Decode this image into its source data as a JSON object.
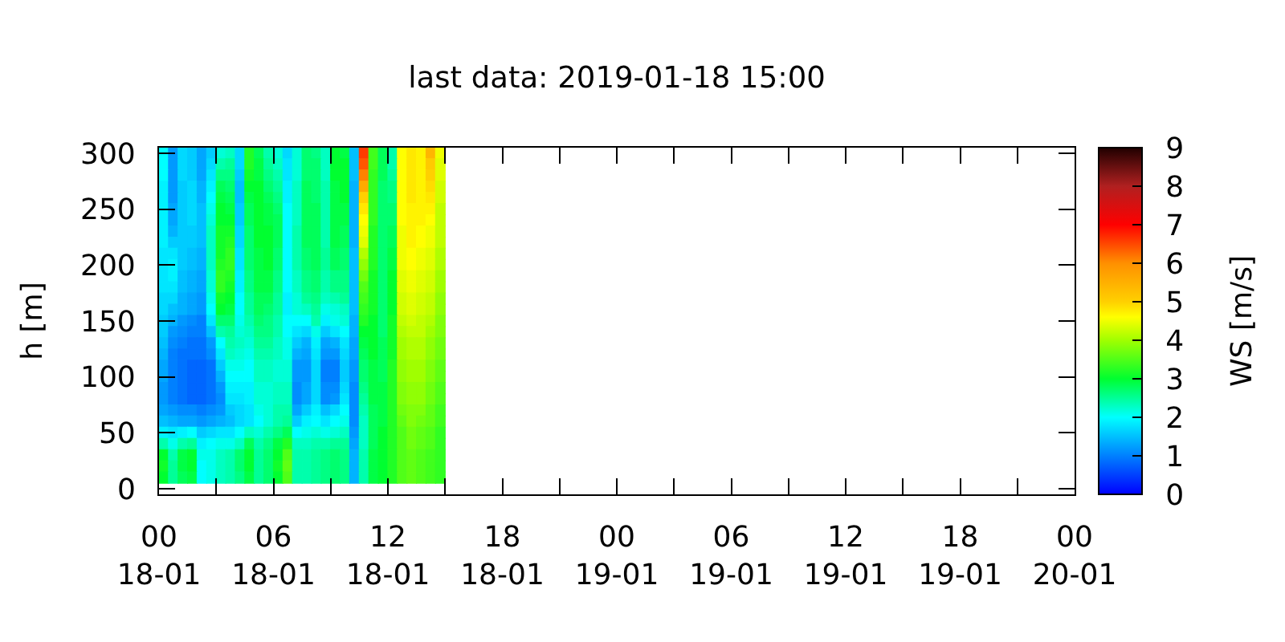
{
  "chart_data": {
    "type": "heatmap",
    "title": "last data: 2019-01-18 15:00",
    "ylabel": "h [m]",
    "clabel": "WS [m/s]",
    "x": [
      "2019-01-18T00:15",
      "2019-01-18T00:45",
      "2019-01-18T01:15",
      "2019-01-18T01:45",
      "2019-01-18T02:15",
      "2019-01-18T02:45",
      "2019-01-18T03:15",
      "2019-01-18T03:45",
      "2019-01-18T04:15",
      "2019-01-18T04:45",
      "2019-01-18T05:15",
      "2019-01-18T05:45",
      "2019-01-18T06:15",
      "2019-01-18T06:45",
      "2019-01-18T07:15",
      "2019-01-18T07:45",
      "2019-01-18T08:15",
      "2019-01-18T08:45",
      "2019-01-18T09:15",
      "2019-01-18T09:45",
      "2019-01-18T10:15",
      "2019-01-18T10:45",
      "2019-01-18T11:15",
      "2019-01-18T11:45",
      "2019-01-18T12:15",
      "2019-01-18T12:45",
      "2019-01-18T13:15",
      "2019-01-18T13:45",
      "2019-01-18T14:15",
      "2019-01-18T14:45"
    ],
    "y_categories": [
      "300",
      null,
      null,
      null,
      null,
      "250",
      null,
      null,
      null,
      null,
      "200",
      null,
      null,
      null,
      null,
      "150",
      null,
      null,
      null,
      null,
      "100",
      null,
      null,
      null,
      null,
      "50",
      null,
      null,
      null,
      null,
      "0"
    ],
    "cells": [
      [
        2.0,
        1.2,
        1.7,
        1.6,
        1.3,
        1.6,
        2.2,
        2.3,
        1.7,
        3.2,
        2.8,
        2.4,
        2.2,
        1.7,
        2.2,
        2.7,
        2.6,
        2.3,
        3.0,
        2.9,
        1.5,
        6.6,
        3.4,
        2.8,
        2.4,
        4.6,
        4.8,
        4.7,
        5.4,
        4.5
      ],
      [
        2.0,
        1.2,
        1.7,
        1.6,
        1.3,
        1.7,
        2.4,
        2.5,
        1.7,
        3.2,
        2.9,
        2.5,
        2.3,
        1.8,
        2.2,
        2.7,
        2.7,
        2.3,
        3.0,
        3.0,
        1.5,
        6.4,
        3.4,
        2.8,
        2.4,
        4.6,
        4.8,
        4.7,
        5.1,
        4.4
      ],
      [
        2.0,
        1.2,
        1.7,
        1.6,
        1.3,
        1.8,
        2.6,
        2.6,
        1.6,
        3.1,
        2.9,
        2.6,
        2.4,
        1.8,
        2.2,
        2.7,
        2.7,
        2.3,
        3.0,
        3.0,
        1.5,
        6.1,
        3.3,
        2.8,
        2.5,
        4.6,
        4.8,
        4.7,
        5.0,
        4.4
      ],
      [
        1.9,
        1.2,
        1.6,
        1.7,
        1.4,
        1.9,
        2.8,
        2.7,
        1.5,
        3.0,
        3.0,
        2.7,
        2.5,
        1.9,
        2.3,
        2.8,
        2.7,
        2.4,
        2.9,
        3.0,
        1.4,
        5.6,
        3.3,
        2.7,
        2.6,
        4.6,
        4.8,
        4.7,
        4.9,
        4.3
      ],
      [
        1.9,
        1.2,
        1.6,
        1.7,
        1.4,
        2.0,
        2.9,
        2.8,
        1.5,
        2.9,
        3.0,
        2.8,
        2.6,
        1.9,
        2.3,
        2.8,
        2.7,
        2.4,
        2.9,
        3.0,
        1.4,
        5.0,
        3.3,
        2.7,
        2.6,
        4.6,
        4.8,
        4.7,
        4.8,
        4.3
      ],
      [
        1.9,
        1.3,
        1.6,
        1.7,
        1.5,
        2.1,
        3.0,
        2.9,
        1.6,
        2.8,
        3.0,
        2.9,
        2.7,
        2.0,
        2.3,
        2.8,
        2.8,
        2.4,
        2.9,
        2.9,
        1.4,
        4.8,
        3.3,
        2.7,
        2.7,
        4.6,
        4.7,
        4.7,
        4.7,
        4.2
      ],
      [
        1.9,
        1.3,
        1.6,
        1.7,
        1.5,
        2.2,
        3.0,
        3.0,
        1.6,
        2.8,
        3.0,
        2.9,
        2.8,
        2.0,
        2.3,
        2.8,
        2.8,
        2.4,
        2.9,
        2.9,
        1.4,
        4.6,
        3.3,
        2.7,
        2.7,
        4.6,
        4.7,
        4.7,
        4.6,
        4.2
      ],
      [
        1.9,
        1.4,
        1.6,
        1.6,
        1.5,
        2.3,
        3.1,
        3.1,
        1.7,
        2.7,
        3.0,
        3.0,
        2.8,
        2.0,
        2.4,
        2.8,
        2.8,
        2.4,
        2.9,
        2.8,
        1.4,
        4.5,
        3.2,
        2.7,
        2.8,
        4.5,
        4.7,
        4.6,
        4.5,
        4.2
      ],
      [
        1.9,
        1.6,
        1.6,
        1.6,
        1.5,
        2.3,
        3.1,
        3.2,
        1.7,
        2.7,
        3.0,
        3.0,
        2.8,
        2.0,
        2.4,
        2.8,
        2.8,
        2.4,
        2.9,
        2.8,
        1.4,
        4.4,
        3.2,
        2.7,
        2.8,
        4.5,
        4.7,
        4.6,
        4.5,
        4.2
      ],
      [
        1.8,
        1.8,
        1.6,
        1.5,
        1.4,
        2.3,
        3.1,
        3.3,
        1.8,
        2.7,
        2.9,
        3.0,
        2.7,
        2.0,
        2.4,
        2.7,
        2.8,
        2.5,
        2.8,
        2.7,
        1.5,
        4.1,
        3.2,
        2.7,
        2.9,
        4.5,
        4.6,
        4.5,
        4.4,
        4.1
      ],
      [
        1.8,
        1.9,
        1.6,
        1.5,
        1.4,
        2.3,
        3.2,
        3.3,
        1.8,
        2.7,
        2.9,
        3.0,
        2.7,
        2.0,
        2.4,
        2.7,
        2.8,
        2.5,
        2.8,
        2.7,
        1.5,
        3.9,
        3.2,
        2.7,
        2.9,
        4.5,
        4.6,
        4.5,
        4.4,
        4.1
      ],
      [
        1.8,
        1.9,
        1.5,
        1.4,
        1.3,
        2.2,
        3.3,
        3.2,
        1.9,
        2.6,
        2.9,
        2.9,
        2.6,
        2.0,
        2.3,
        2.6,
        2.7,
        2.4,
        2.6,
        2.6,
        1.5,
        3.7,
        3.1,
        2.7,
        3.0,
        4.4,
        4.5,
        4.4,
        4.3,
        4.0
      ],
      [
        1.8,
        1.8,
        1.5,
        1.4,
        1.3,
        2.2,
        3.3,
        3.1,
        1.9,
        2.6,
        2.9,
        2.9,
        2.6,
        2.0,
        2.3,
        2.6,
        2.7,
        2.4,
        2.6,
        2.6,
        1.5,
        3.5,
        3.1,
        2.7,
        3.0,
        4.4,
        4.5,
        4.4,
        4.3,
        4.0
      ],
      [
        1.7,
        1.7,
        1.4,
        1.3,
        1.2,
        2.1,
        3.1,
        3.0,
        2.0,
        2.5,
        2.8,
        2.8,
        2.5,
        1.9,
        2.2,
        2.5,
        2.6,
        2.3,
        2.4,
        2.5,
        1.5,
        3.4,
        3.1,
        2.7,
        3.0,
        4.3,
        4.4,
        4.3,
        4.2,
        3.9
      ],
      [
        1.7,
        1.5,
        1.4,
        1.3,
        1.2,
        2.0,
        3.0,
        2.9,
        2.0,
        2.5,
        2.8,
        2.7,
        2.5,
        1.9,
        2.2,
        2.3,
        2.5,
        2.1,
        2.2,
        2.3,
        1.5,
        3.3,
        3.1,
        2.7,
        3.0,
        4.3,
        4.4,
        4.3,
        4.2,
        3.9
      ],
      [
        1.6,
        1.4,
        1.2,
        1.1,
        1.0,
        1.8,
        2.7,
        2.7,
        2.1,
        2.4,
        2.7,
        2.6,
        2.4,
        2.0,
        2.0,
        2.0,
        2.4,
        1.9,
        2.1,
        2.2,
        1.4,
        3.2,
        3.0,
        2.7,
        3.1,
        4.2,
        4.3,
        4.2,
        4.1,
        3.8
      ],
      [
        1.6,
        1.2,
        1.1,
        1.0,
        1.0,
        1.5,
        2.4,
        2.5,
        2.2,
        2.3,
        2.6,
        2.6,
        2.4,
        2.0,
        1.8,
        1.7,
        2.1,
        1.6,
        1.8,
        2.0,
        1.4,
        3.0,
        3.0,
        2.7,
        3.1,
        4.1,
        4.2,
        4.2,
        4.0,
        3.8
      ],
      [
        1.5,
        1.1,
        1.0,
        0.9,
        0.9,
        1.2,
        2.0,
        2.4,
        2.3,
        2.2,
        2.5,
        2.5,
        2.3,
        2.1,
        1.6,
        1.4,
        1.9,
        1.3,
        1.4,
        1.8,
        1.3,
        2.9,
        3.0,
        2.8,
        3.1,
        4.0,
        4.1,
        4.1,
        3.9,
        3.7
      ],
      [
        1.4,
        1.0,
        0.9,
        0.9,
        0.9,
        1.1,
        1.8,
        2.3,
        2.2,
        2.1,
        2.4,
        2.4,
        2.3,
        2.1,
        1.4,
        1.3,
        1.8,
        1.2,
        1.2,
        1.7,
        1.3,
        2.8,
        3.0,
        2.8,
        3.1,
        4.0,
        4.1,
        4.1,
        3.9,
        3.7
      ],
      [
        1.3,
        1.0,
        0.9,
        0.8,
        0.8,
        0.9,
        1.6,
        2.1,
        2.1,
        2.0,
        2.3,
        2.3,
        2.2,
        2.2,
        1.2,
        1.2,
        1.7,
        1.0,
        1.0,
        1.6,
        1.2,
        2.7,
        2.9,
        2.8,
        3.2,
        3.9,
        4.0,
        4.0,
        3.8,
        3.6
      ],
      [
        1.3,
        1.0,
        0.9,
        0.8,
        0.8,
        0.9,
        1.4,
        2.0,
        2.0,
        2.0,
        2.3,
        2.3,
        2.2,
        2.2,
        1.2,
        1.2,
        1.7,
        1.0,
        1.0,
        1.6,
        1.2,
        2.7,
        2.9,
        2.8,
        3.2,
        3.9,
        4.0,
        4.0,
        3.8,
        3.6
      ],
      [
        1.2,
        1.0,
        0.9,
        0.8,
        0.8,
        0.9,
        1.2,
        1.9,
        1.9,
        1.9,
        2.2,
        2.2,
        2.3,
        2.3,
        1.1,
        1.3,
        1.7,
        1.1,
        1.1,
        1.7,
        1.1,
        2.6,
        2.9,
        2.9,
        3.2,
        3.8,
        3.9,
        3.9,
        3.7,
        3.5
      ],
      [
        1.2,
        1.0,
        0.9,
        0.8,
        0.8,
        0.9,
        1.1,
        1.8,
        1.8,
        1.9,
        2.2,
        2.2,
        2.3,
        2.3,
        1.1,
        1.3,
        1.7,
        1.1,
        1.2,
        1.8,
        1.1,
        2.5,
        2.9,
        2.9,
        3.2,
        3.8,
        3.9,
        3.9,
        3.7,
        3.5
      ],
      [
        1.3,
        1.2,
        1.1,
        1.1,
        1.0,
        1.1,
        1.2,
        1.6,
        1.7,
        1.8,
        2.1,
        2.2,
        2.4,
        2.4,
        1.3,
        1.6,
        1.9,
        1.5,
        1.7,
        2.0,
        1.1,
        2.4,
        2.8,
        2.9,
        3.2,
        3.7,
        3.8,
        3.8,
        3.6,
        3.4
      ],
      [
        1.5,
        1.4,
        1.3,
        1.3,
        1.2,
        1.3,
        1.4,
        1.5,
        1.7,
        1.8,
        2.0,
        2.2,
        2.4,
        2.5,
        1.6,
        1.9,
        2.0,
        1.8,
        2.0,
        2.1,
        1.1,
        2.3,
        2.8,
        2.9,
        3.2,
        3.6,
        3.8,
        3.7,
        3.6,
        3.4
      ],
      [
        1.9,
        1.8,
        1.9,
        2.0,
        1.6,
        1.7,
        1.8,
        1.8,
        2.0,
        2.3,
        2.2,
        2.4,
        2.6,
        2.8,
        2.0,
        2.1,
        2.2,
        2.1,
        2.2,
        2.3,
        1.2,
        2.3,
        2.8,
        3.0,
        3.2,
        3.5,
        3.7,
        3.6,
        3.5,
        3.3
      ],
      [
        2.4,
        2.1,
        2.4,
        2.5,
        1.9,
        2.0,
        2.1,
        2.1,
        2.3,
        2.8,
        2.4,
        2.6,
        2.9,
        3.2,
        2.3,
        2.3,
        2.4,
        2.4,
        2.5,
        2.5,
        1.3,
        2.3,
        2.8,
        3.0,
        3.2,
        3.5,
        3.7,
        3.6,
        3.5,
        3.3
      ],
      [
        3.0,
        2.4,
        2.9,
        3.0,
        2.1,
        2.1,
        2.3,
        2.4,
        2.7,
        3.0,
        2.5,
        2.7,
        3.0,
        3.5,
        2.4,
        2.4,
        2.5,
        2.6,
        2.7,
        2.6,
        1.4,
        2.4,
        2.9,
        3.0,
        3.2,
        3.5,
        3.6,
        3.5,
        3.4,
        3.3
      ],
      [
        3.1,
        2.5,
        2.9,
        3.0,
        2.0,
        2.1,
        2.3,
        2.4,
        2.7,
        3.0,
        2.5,
        2.7,
        3.1,
        3.6,
        2.4,
        2.4,
        2.5,
        2.6,
        2.7,
        2.6,
        1.4,
        2.4,
        2.9,
        3.0,
        3.2,
        3.5,
        3.6,
        3.5,
        3.4,
        3.3
      ],
      [
        3.0,
        2.5,
        2.8,
        2.9,
        2.0,
        2.1,
        2.3,
        2.4,
        2.6,
        2.9,
        2.5,
        2.7,
        3.0,
        3.5,
        2.4,
        2.4,
        2.5,
        2.6,
        2.7,
        2.6,
        1.4,
        2.4,
        2.9,
        3.0,
        3.2,
        3.5,
        3.6,
        3.5,
        3.4,
        3.3
      ],
      [
        null,
        null,
        null,
        null,
        null,
        null,
        null,
        null,
        null,
        null,
        null,
        null,
        null,
        null,
        null,
        null,
        null,
        null,
        null,
        null,
        null,
        null,
        null,
        null,
        null,
        null,
        null,
        null,
        null,
        null
      ]
    ],
    "xlim": [
      "2019-01-18T00:00",
      "2019-01-20T00:00"
    ],
    "xticks": [
      {
        "value": "2019-01-18T00:00",
        "label": "00\n18-01"
      },
      {
        "value": "2019-01-18T03:00",
        "label": null
      },
      {
        "value": "2019-01-18T06:00",
        "label": "06\n18-01"
      },
      {
        "value": "2019-01-18T09:00",
        "label": null
      },
      {
        "value": "2019-01-18T12:00",
        "label": "12\n18-01"
      },
      {
        "value": "2019-01-18T15:00",
        "label": null
      },
      {
        "value": "2019-01-18T18:00",
        "label": "18\n18-01"
      },
      {
        "value": "2019-01-18T21:00",
        "label": null
      },
      {
        "value": "2019-01-19T00:00",
        "label": "00\n19-01"
      },
      {
        "value": "2019-01-19T03:00",
        "label": null
      },
      {
        "value": "2019-01-19T06:00",
        "label": "06\n19-01"
      },
      {
        "value": "2019-01-19T09:00",
        "label": null
      },
      {
        "value": "2019-01-19T12:00",
        "label": "12\n19-01"
      },
      {
        "value": "2019-01-19T15:00",
        "label": null
      },
      {
        "value": "2019-01-19T18:00",
        "label": "18\n19-01"
      },
      {
        "value": "2019-01-19T21:00",
        "label": null
      },
      {
        "value": "2019-01-20T00:00",
        "label": "00\n20-01"
      }
    ],
    "clim": [
      0,
      9
    ],
    "cticks": [
      0,
      1,
      2,
      3,
      4,
      5,
      6,
      7,
      8,
      9
    ]
  }
}
